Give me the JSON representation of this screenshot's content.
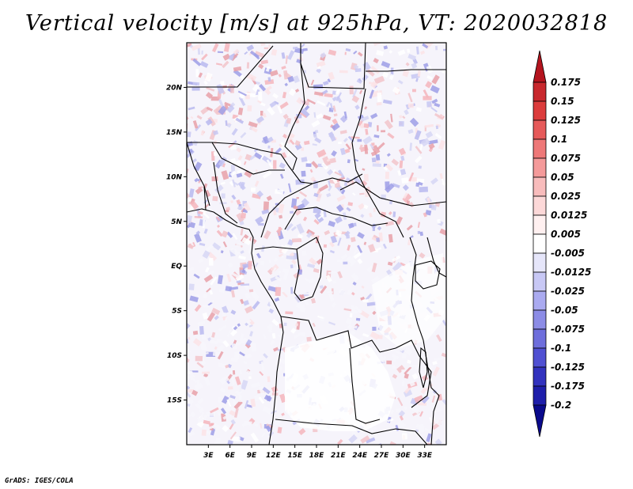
{
  "title": "Vertical velocity [m/s] at 925hPa, VT: 2020032818",
  "footer": "GrADS: IGES/COLA",
  "map": {
    "variable": "Vertical velocity",
    "units": "m/s",
    "level": "925hPa",
    "valid_time": "2020032818",
    "lat_range": [
      -20,
      25
    ],
    "lon_range": [
      0,
      36
    ],
    "lat_labels": [
      "20N",
      "15N",
      "10N",
      "5N",
      "EQ",
      "5S",
      "10S",
      "15S"
    ],
    "lon_labels": [
      "3E",
      "6E",
      "9E",
      "12E",
      "15E",
      "18E",
      "21E",
      "24E",
      "27E",
      "30E",
      "33E"
    ]
  },
  "colorbar": {
    "labels": [
      "0.175",
      "0.15",
      "0.125",
      "0.1",
      "0.075",
      "0.05",
      "0.025",
      "0.0125",
      "0.005",
      "-0.005",
      "-0.0125",
      "-0.025",
      "-0.05",
      "-0.075",
      "-0.1",
      "-0.125",
      "-0.175",
      "-0.2"
    ],
    "colors": [
      "#b4141e",
      "#c8282d",
      "#dc3c3c",
      "#e65a5a",
      "#ee7878",
      "#f49a9a",
      "#f8bcbc",
      "#fcd8d8",
      "#fff0f0",
      "#ffffff",
      "#e6e6fa",
      "#c8c8f5",
      "#aaaaf0",
      "#8c8ce6",
      "#6e6edc",
      "#5050d2",
      "#3232be",
      "#1e1eaa",
      "#0a0a8c"
    ]
  }
}
